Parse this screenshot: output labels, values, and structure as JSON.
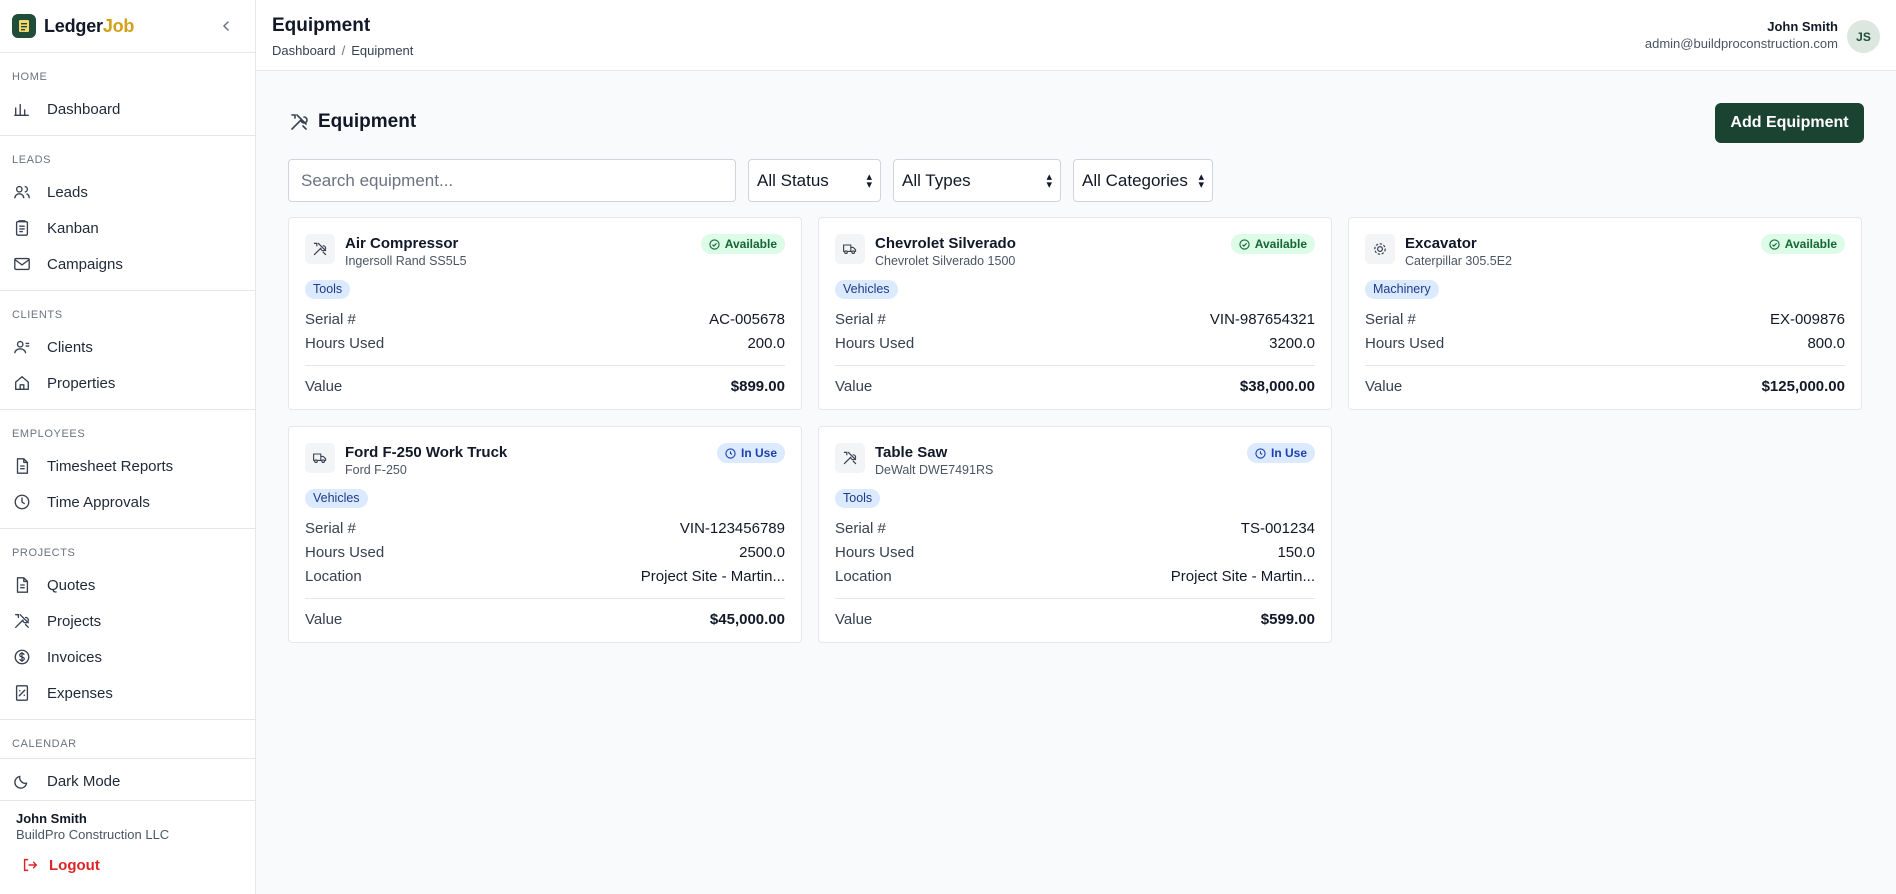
{
  "brand": {
    "name_main": "Ledger",
    "name_accent": "Job",
    "accent_color": "#d4a017",
    "primary_color": "#1a4331"
  },
  "sidebar": {
    "sections": [
      {
        "title": "HOME",
        "items": [
          {
            "label": "Dashboard",
            "icon": "bar-chart-icon"
          }
        ]
      },
      {
        "title": "LEADS",
        "items": [
          {
            "label": "Leads",
            "icon": "users-icon"
          },
          {
            "label": "Kanban",
            "icon": "clipboard-icon"
          },
          {
            "label": "Campaigns",
            "icon": "mail-icon"
          }
        ]
      },
      {
        "title": "CLIENTS",
        "items": [
          {
            "label": "Clients",
            "icon": "user-icon"
          },
          {
            "label": "Properties",
            "icon": "home-icon"
          }
        ]
      },
      {
        "title": "EMPLOYEES",
        "items": [
          {
            "label": "Timesheet Reports",
            "icon": "file-icon"
          },
          {
            "label": "Time Approvals",
            "icon": "clock-icon"
          }
        ]
      },
      {
        "title": "PROJECTS",
        "items": [
          {
            "label": "Quotes",
            "icon": "file-icon"
          },
          {
            "label": "Projects",
            "icon": "tools-icon"
          },
          {
            "label": "Invoices",
            "icon": "dollar-circle-icon"
          },
          {
            "label": "Expenses",
            "icon": "receipt-icon"
          }
        ]
      },
      {
        "title": "CALENDAR",
        "items": []
      }
    ],
    "dark_mode_label": "Dark Mode",
    "footer": {
      "user_name": "John Smith",
      "company": "BuildPro Construction LLC",
      "logout_label": "Logout"
    }
  },
  "header": {
    "title": "Equipment",
    "breadcrumb": [
      "Dashboard",
      "Equipment"
    ],
    "breadcrumb_sep": "/",
    "user_name": "John Smith",
    "user_email": "admin@buildproconstruction.com",
    "avatar_initials": "JS"
  },
  "main": {
    "section_title": "Equipment",
    "add_button_label": "Add Equipment",
    "search_placeholder": "Search equipment...",
    "filters": [
      "All Status",
      "All Types",
      "All Categories"
    ]
  },
  "equipment": [
    {
      "name": "Air Compressor",
      "model": "Ingersoll Rand SS5L5",
      "status": "Available",
      "category": "Tools",
      "icon": "tools-icon",
      "rows": [
        {
          "label": "Serial #",
          "value": "AC-005678"
        },
        {
          "label": "Hours Used",
          "value": "200.0"
        }
      ],
      "value_label": "Value",
      "value": "$899.00"
    },
    {
      "name": "Chevrolet Silverado",
      "model": "Chevrolet Silverado 1500",
      "status": "Available",
      "category": "Vehicles",
      "icon": "truck-icon",
      "rows": [
        {
          "label": "Serial #",
          "value": "VIN-987654321"
        },
        {
          "label": "Hours Used",
          "value": "3200.0"
        }
      ],
      "value_label": "Value",
      "value": "$38,000.00"
    },
    {
      "name": "Excavator",
      "model": "Caterpillar 305.5E2",
      "status": "Available",
      "category": "Machinery",
      "icon": "cog-icon",
      "rows": [
        {
          "label": "Serial #",
          "value": "EX-009876"
        },
        {
          "label": "Hours Used",
          "value": "800.0"
        }
      ],
      "value_label": "Value",
      "value": "$125,000.00"
    },
    {
      "name": "Ford F-250 Work Truck",
      "model": "Ford F-250",
      "status": "In Use",
      "category": "Vehicles",
      "icon": "truck-icon",
      "rows": [
        {
          "label": "Serial #",
          "value": "VIN-123456789"
        },
        {
          "label": "Hours Used",
          "value": "2500.0"
        },
        {
          "label": "Location",
          "value": "Project Site - Martin..."
        }
      ],
      "value_label": "Value",
      "value": "$45,000.00"
    },
    {
      "name": "Table Saw",
      "model": "DeWalt DWE7491RS",
      "status": "In Use",
      "category": "Tools",
      "icon": "tools-icon",
      "rows": [
        {
          "label": "Serial #",
          "value": "TS-001234"
        },
        {
          "label": "Hours Used",
          "value": "150.0"
        },
        {
          "label": "Location",
          "value": "Project Site - Martin..."
        }
      ],
      "value_label": "Value",
      "value": "$599.00"
    }
  ]
}
